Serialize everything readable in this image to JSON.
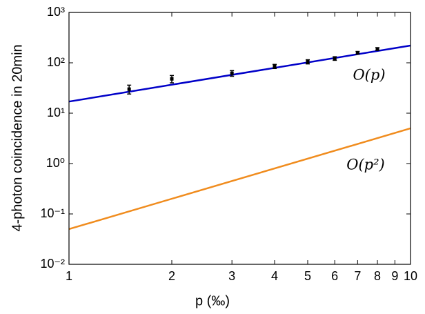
{
  "chart_data": {
    "type": "line",
    "x_label": "p (‰)",
    "y_label": "4-photon coincidence in 20min",
    "xscale": "log",
    "yscale": "log",
    "xlim": [
      1,
      10
    ],
    "ylim": [
      0.01,
      1000
    ],
    "xticks": [
      1,
      2,
      3,
      4,
      5,
      6,
      7,
      8,
      9,
      10
    ],
    "yticks": [
      {
        "value": 0.01,
        "label": "10⁻²"
      },
      {
        "value": 0.1,
        "label": "10⁻¹"
      },
      {
        "value": 1,
        "label": "10⁰"
      },
      {
        "value": 10,
        "label": "10¹"
      },
      {
        "value": 100,
        "label": "10²"
      },
      {
        "value": 1000,
        "label": "10³"
      }
    ],
    "series": [
      {
        "name": "O(p)",
        "color": "#0000c8",
        "x": [
          1,
          10
        ],
        "values": [
          17,
          220
        ]
      },
      {
        "name": "O(p²)",
        "color": "#f08c1e",
        "x": [
          1,
          10
        ],
        "values": [
          0.05,
          5
        ]
      },
      {
        "color": "#000000",
        "x": [
          1.5,
          2,
          3,
          4,
          5,
          6,
          7,
          8
        ],
        "values": [
          30,
          48,
          62,
          85,
          105,
          122,
          158,
          188
        ],
        "errors": [
          6,
          8,
          8,
          8,
          10,
          10,
          10,
          12
        ]
      }
    ]
  }
}
